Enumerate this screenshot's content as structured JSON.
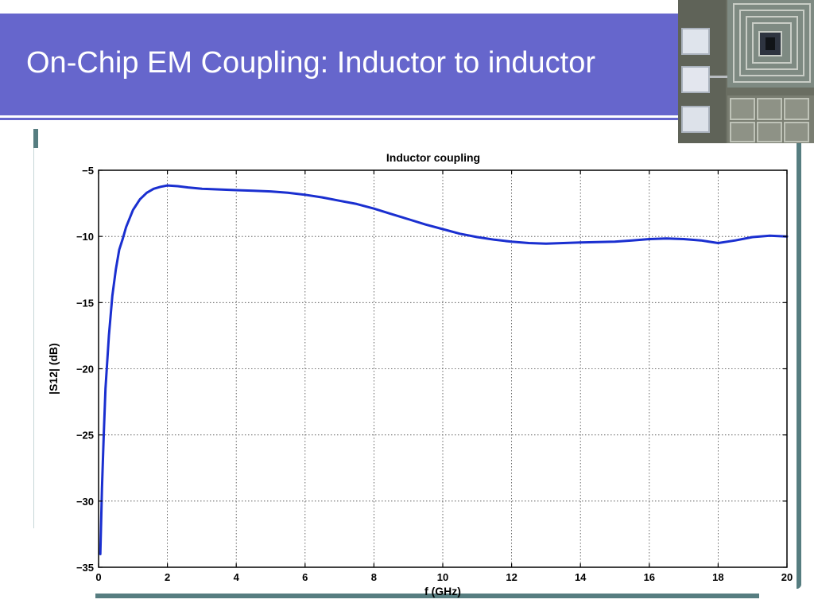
{
  "slide": {
    "title": "On-Chip EM Coupling: Inductor to inductor"
  },
  "chart_data": {
    "type": "line",
    "title": "Inductor coupling",
    "xlabel": "f (GHz)",
    "ylabel": "|S12| (dB)",
    "xlim": [
      0,
      20
    ],
    "ylim": [
      -35,
      -5
    ],
    "xticks": [
      0,
      2,
      4,
      6,
      8,
      10,
      12,
      14,
      16,
      18,
      20
    ],
    "yticks": [
      -5,
      -10,
      -15,
      -20,
      -25,
      -30,
      -35
    ],
    "grid": true,
    "series": [
      {
        "color": "#1a2fd0",
        "x": [
          0.05,
          0.1,
          0.15,
          0.2,
          0.3,
          0.4,
          0.5,
          0.6,
          0.7,
          0.8,
          1.0,
          1.2,
          1.4,
          1.6,
          1.8,
          2.0,
          2.3,
          2.6,
          3.0,
          3.5,
          4.0,
          4.5,
          5.0,
          5.5,
          6.0,
          6.5,
          7.0,
          7.5,
          8.0,
          8.5,
          9.0,
          9.5,
          10.0,
          10.5,
          11.0,
          11.5,
          12.0,
          12.5,
          13.0,
          13.5,
          14.0,
          14.5,
          15.0,
          15.5,
          16.0,
          16.5,
          17.0,
          17.5,
          18.0,
          18.5,
          19.0,
          19.5,
          20.0
        ],
        "y": [
          -34,
          -29,
          -25,
          -21.5,
          -17.5,
          -14.5,
          -12.5,
          -11.0,
          -10.2,
          -9.3,
          -8.0,
          -7.2,
          -6.7,
          -6.4,
          -6.25,
          -6.15,
          -6.2,
          -6.3,
          -6.4,
          -6.45,
          -6.5,
          -6.55,
          -6.6,
          -6.7,
          -6.85,
          -7.05,
          -7.3,
          -7.55,
          -7.9,
          -8.3,
          -8.7,
          -9.1,
          -9.45,
          -9.8,
          -10.05,
          -10.25,
          -10.4,
          -10.5,
          -10.55,
          -10.5,
          -10.45,
          -10.42,
          -10.4,
          -10.3,
          -10.2,
          -10.15,
          -10.2,
          -10.3,
          -10.5,
          -10.3,
          -10.05,
          -9.95,
          -10.0
        ]
      }
    ]
  }
}
